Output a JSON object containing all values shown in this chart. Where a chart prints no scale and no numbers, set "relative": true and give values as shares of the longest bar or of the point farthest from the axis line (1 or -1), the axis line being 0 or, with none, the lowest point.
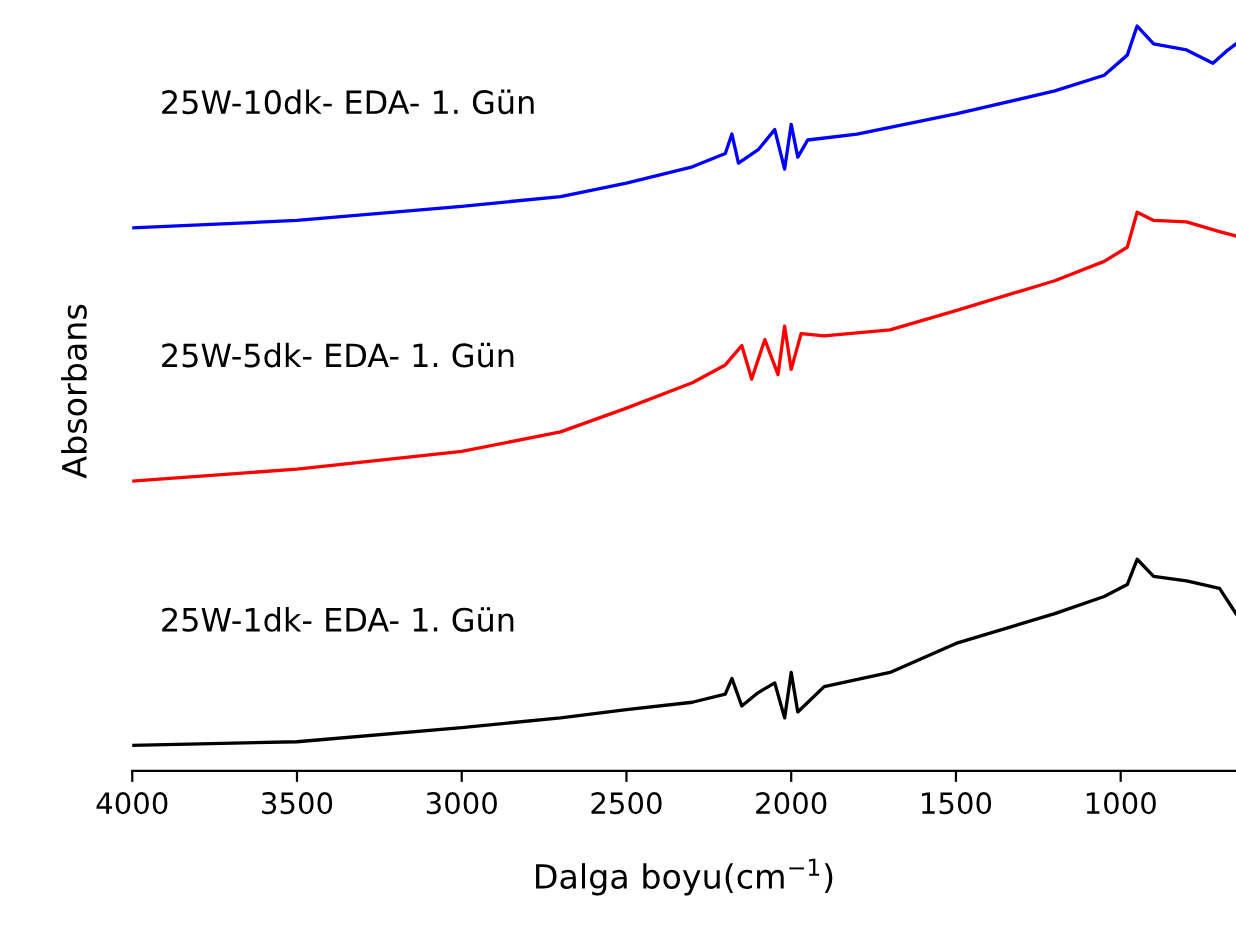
{
  "chart_data": {
    "type": "line",
    "relative": true,
    "xlabel": "Dalga boyu(cm$^{−1}$)",
    "ylabel": "Absorbans",
    "tick_labels": "x",
    "grid": false,
    "legend": false,
    "xlim": [
      4000,
      650
    ],
    "xticks": [
      4000,
      3500,
      3000,
      2500,
      2000,
      1500,
      1000
    ],
    "series": [
      {
        "name": "25W-10dk- EDA- 1. Gün",
        "color": "#0000ff",
        "x": [
          4000,
          3500,
          3000,
          2700,
          2500,
          2300,
          2200,
          2180,
          2160,
          2100,
          2050,
          2020,
          2000,
          1980,
          1950,
          1800,
          1500,
          1200,
          1050,
          980,
          950,
          900,
          800,
          720,
          680,
          650
        ],
        "values": [
          0.729,
          0.739,
          0.758,
          0.771,
          0.789,
          0.811,
          0.829,
          0.855,
          0.816,
          0.834,
          0.861,
          0.808,
          0.868,
          0.824,
          0.847,
          0.855,
          0.882,
          0.913,
          0.934,
          0.961,
          1.0,
          0.976,
          0.968,
          0.95,
          0.966,
          0.976
        ]
      },
      {
        "name": "25W-5dk- EDA- 1. Gün",
        "color": "#ff0000",
        "x": [
          4000,
          3500,
          3000,
          2700,
          2500,
          2300,
          2200,
          2150,
          2120,
          2080,
          2040,
          2020,
          2000,
          1970,
          1900,
          1700,
          1500,
          1200,
          1050,
          980,
          950,
          900,
          800,
          700,
          650
        ],
        "values": [
          0.389,
          0.405,
          0.429,
          0.455,
          0.487,
          0.521,
          0.545,
          0.571,
          0.526,
          0.579,
          0.532,
          0.597,
          0.539,
          0.587,
          0.584,
          0.592,
          0.618,
          0.658,
          0.684,
          0.703,
          0.75,
          0.739,
          0.737,
          0.724,
          0.718
        ]
      },
      {
        "name": "25W-1dk- EDA- 1. Gün",
        "color": "#000000",
        "x": [
          4000,
          3500,
          3000,
          2700,
          2500,
          2300,
          2200,
          2180,
          2150,
          2100,
          2050,
          2020,
          2000,
          1980,
          1900,
          1700,
          1500,
          1200,
          1050,
          980,
          950,
          900,
          800,
          700,
          650
        ],
        "values": [
          0.034,
          0.039,
          0.058,
          0.071,
          0.082,
          0.092,
          0.103,
          0.124,
          0.087,
          0.105,
          0.118,
          0.071,
          0.132,
          0.079,
          0.113,
          0.132,
          0.171,
          0.211,
          0.234,
          0.25,
          0.284,
          0.261,
          0.255,
          0.245,
          0.211
        ]
      }
    ]
  }
}
